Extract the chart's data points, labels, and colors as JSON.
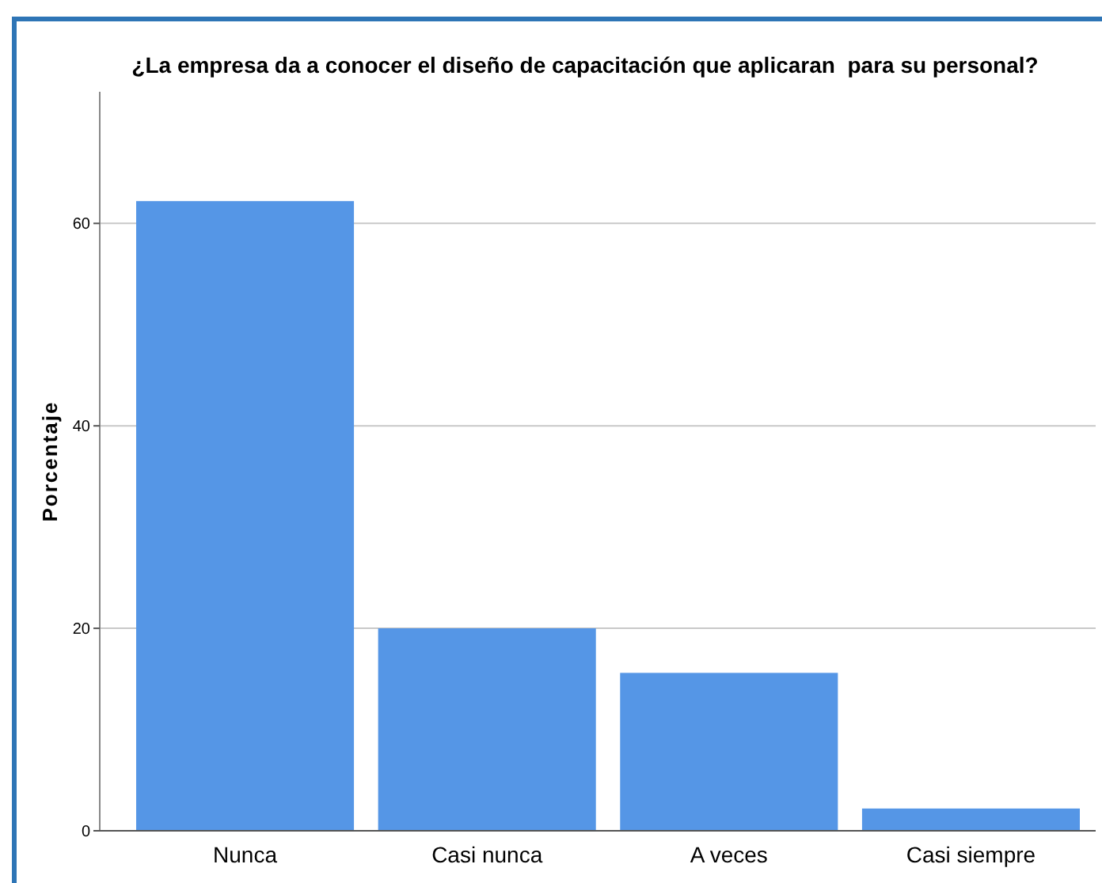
{
  "chart_data": {
    "type": "bar",
    "title": "¿La empresa da a conocer el diseño de capacitación que aplicaran  para su personal?",
    "ylabel": "Porcentaje",
    "categories": [
      "Nunca",
      "Casi nunca",
      "A veces",
      "Casi siempre"
    ],
    "values": [
      62.2,
      20.0,
      15.6,
      2.2
    ],
    "color": "#5596e6",
    "ylim": [
      0,
      73
    ],
    "yticks": [
      0,
      20,
      40,
      60
    ],
    "grid": "y"
  }
}
